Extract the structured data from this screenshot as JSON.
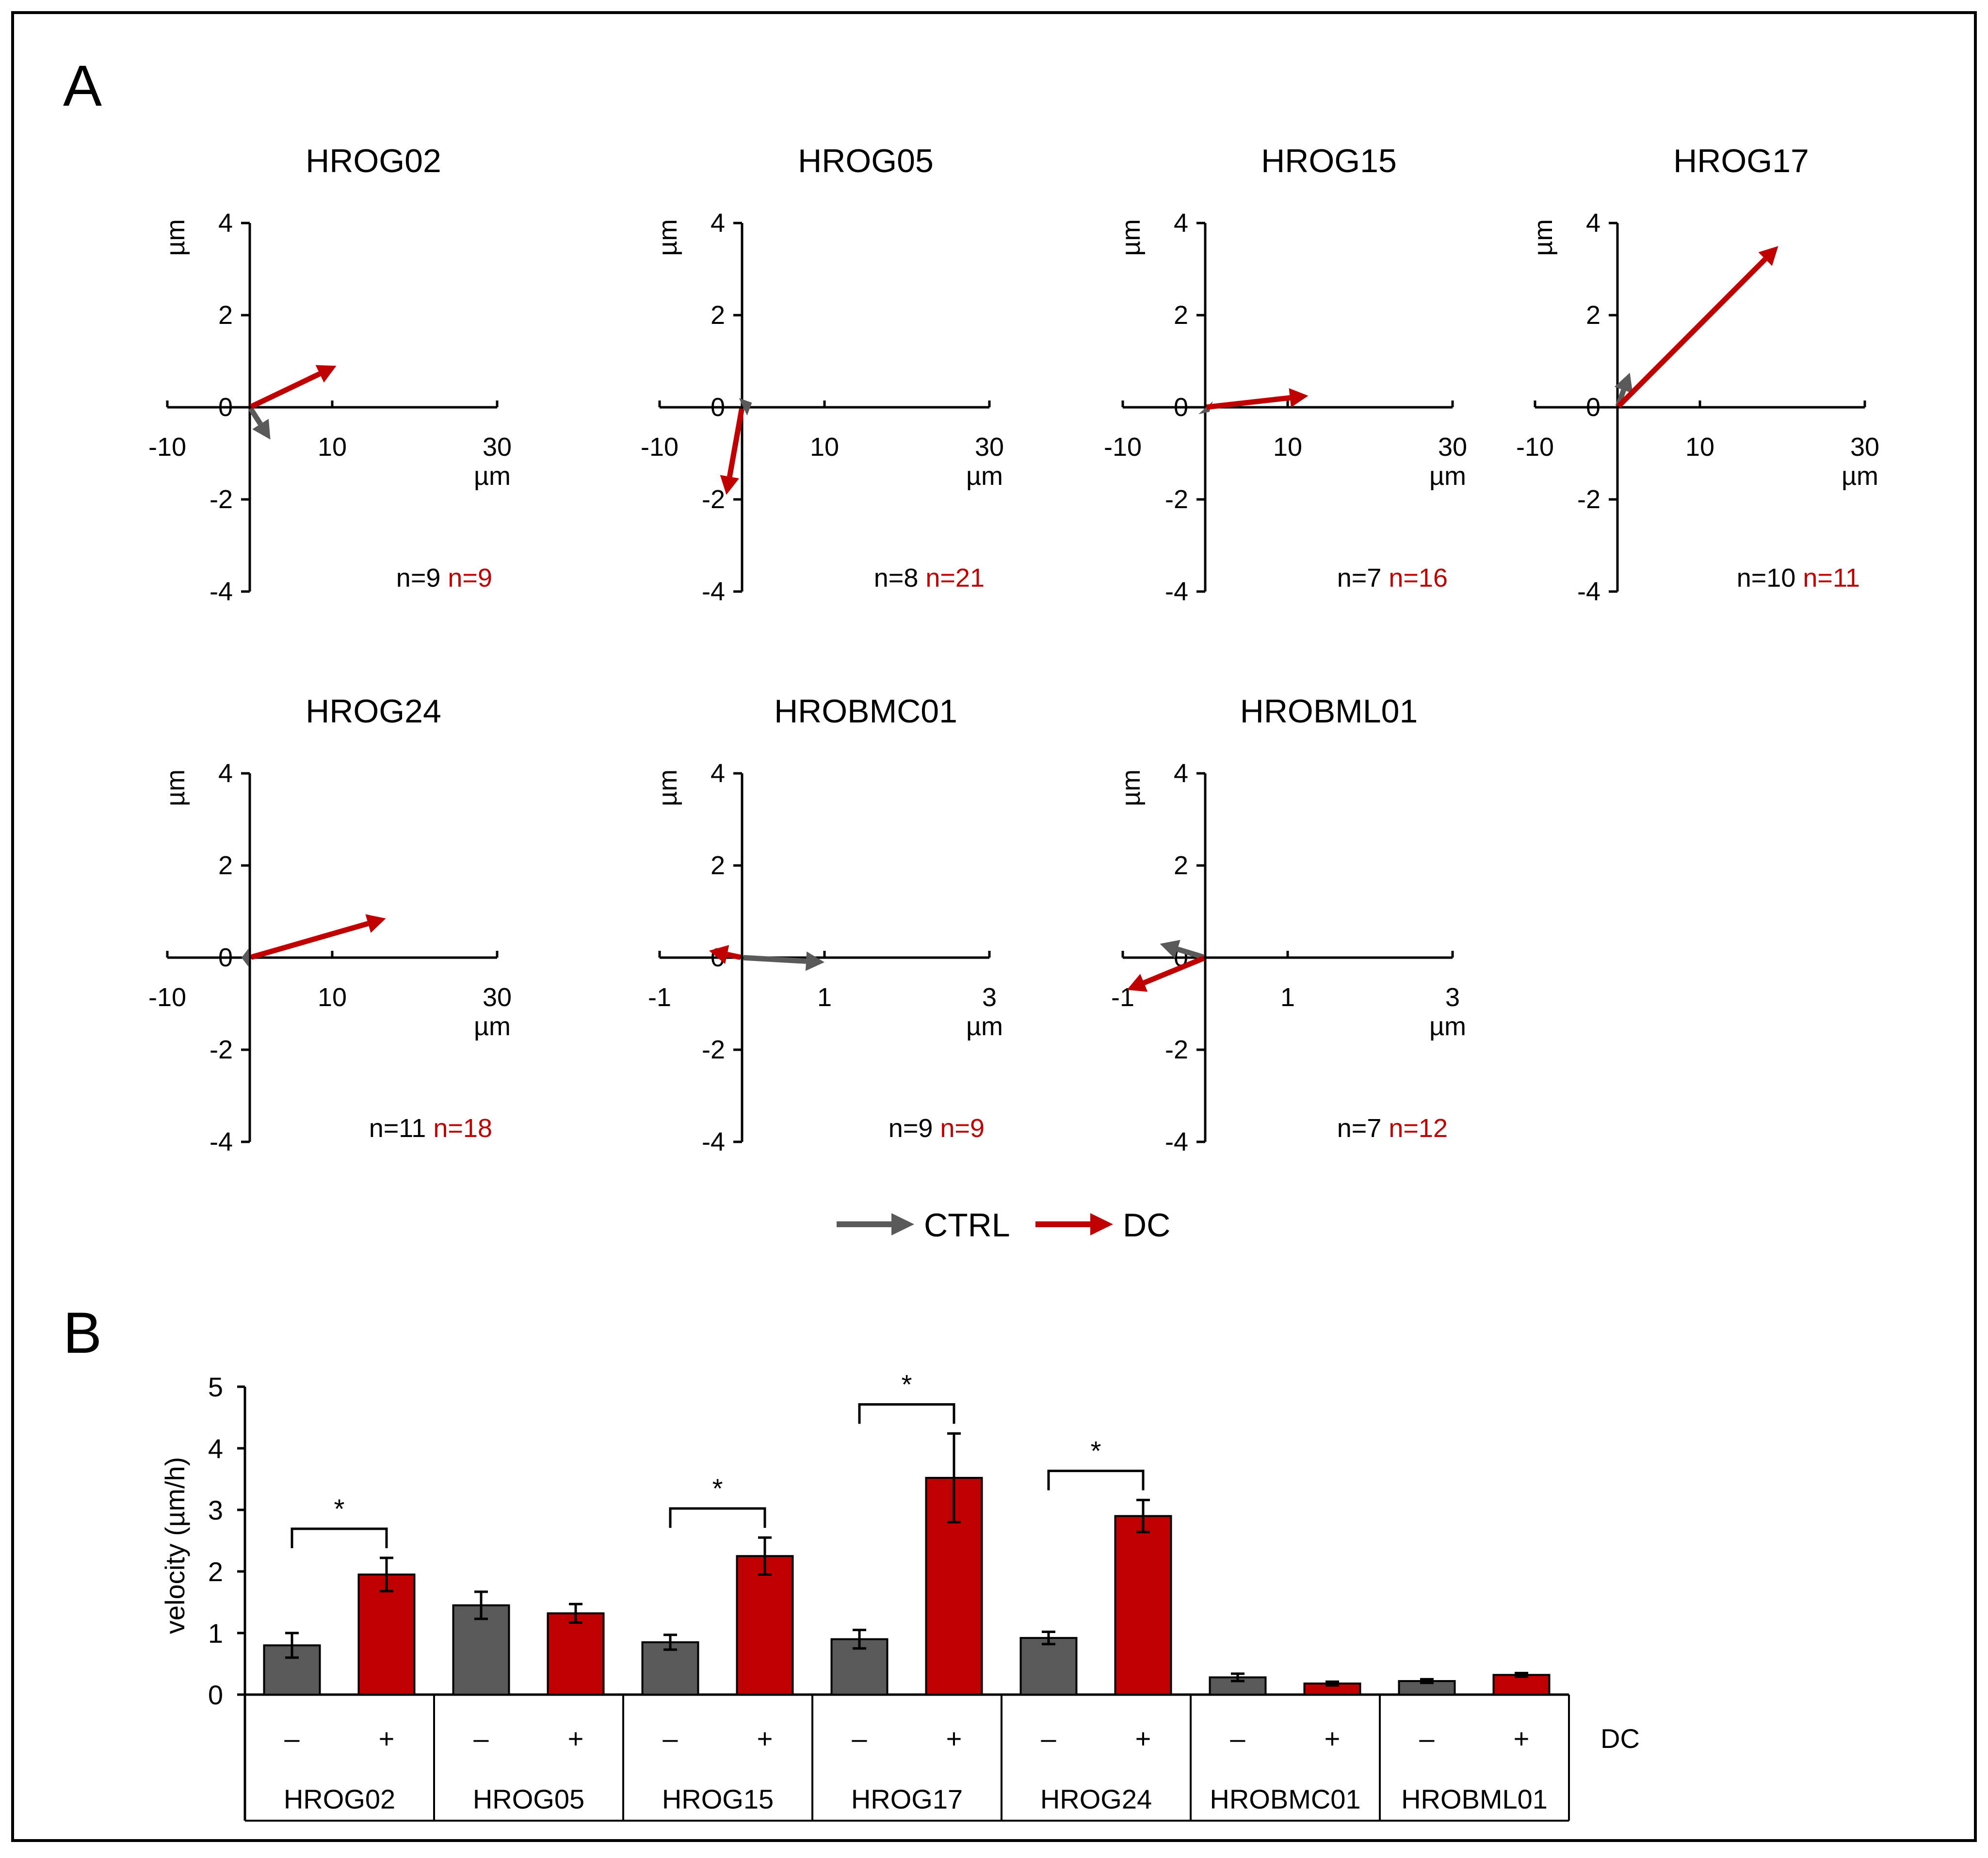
{
  "colors": {
    "ctrl": "#595959",
    "dc": "#C00000",
    "axis": "#000000",
    "text": "#000000",
    "frame": "#000000"
  },
  "panel_a": {
    "label": "A",
    "unit": "µm",
    "legend": [
      {
        "label": "CTRL",
        "color": "#595959"
      },
      {
        "label": "DC",
        "color": "#C00000"
      }
    ]
  },
  "panel_b": {
    "label": "B"
  },
  "chart_data": [
    {
      "type": "vector-plot",
      "title": "HROG02",
      "xlabel": "µm",
      "ylabel": "µm",
      "xlim": [
        -10,
        30
      ],
      "ylim": [
        -4,
        4
      ],
      "xticks": [
        "-10",
        "10",
        "30"
      ],
      "yticks": [
        "4",
        "2",
        "0",
        "-2",
        "-4"
      ],
      "n_ctrl": "n=9",
      "n_dc": "n=9",
      "vectors": [
        {
          "name": "CTRL",
          "dx": 2.5,
          "dy": -0.7
        },
        {
          "name": "DC",
          "dx": 10.5,
          "dy": 0.9
        }
      ]
    },
    {
      "type": "vector-plot",
      "title": "HROG05",
      "xlabel": "µm",
      "ylabel": "µm",
      "xlim": [
        -10,
        30
      ],
      "ylim": [
        -4,
        4
      ],
      "xticks": [
        "-10",
        "10",
        "30"
      ],
      "yticks": [
        "4",
        "2",
        "0",
        "-2",
        "-4"
      ],
      "n_ctrl": "n=8",
      "n_dc": "n=21",
      "vectors": [
        {
          "name": "CTRL",
          "dx": 1.2,
          "dy": 0.1
        },
        {
          "name": "DC",
          "dx": -1.9,
          "dy": -1.9
        }
      ]
    },
    {
      "type": "vector-plot",
      "title": "HROG15",
      "xlabel": "µm",
      "ylabel": "µm",
      "xlim": [
        -10,
        30
      ],
      "ylim": [
        -4,
        4
      ],
      "xticks": [
        "-10",
        "10",
        "30"
      ],
      "yticks": [
        "4",
        "2",
        "0",
        "-2",
        "-4"
      ],
      "n_ctrl": "n=7",
      "n_dc": "n=16",
      "vectors": [
        {
          "name": "CTRL",
          "dx": 0.5,
          "dy": -0.1
        },
        {
          "name": "DC",
          "dx": 12.5,
          "dy": 0.25
        }
      ]
    },
    {
      "type": "vector-plot",
      "title": "HROG17",
      "xlabel": "µm",
      "ylabel": "µm",
      "xlim": [
        -10,
        30
      ],
      "ylim": [
        -4,
        4
      ],
      "xticks": [
        "-10",
        "10",
        "30"
      ],
      "yticks": [
        "4",
        "2",
        "0",
        "-2",
        "-4"
      ],
      "n_ctrl": "n=10",
      "n_dc": "n=11",
      "vectors": [
        {
          "name": "CTRL",
          "dx": 1.5,
          "dy": 0.75
        },
        {
          "name": "DC",
          "dx": 19.5,
          "dy": 3.5
        }
      ]
    },
    {
      "type": "vector-plot",
      "title": "HROG24",
      "xlabel": "µm",
      "ylabel": "µm",
      "xlim": [
        -10,
        30
      ],
      "ylim": [
        -4,
        4
      ],
      "xticks": [
        "-10",
        "10",
        "30"
      ],
      "yticks": [
        "4",
        "2",
        "0",
        "-2",
        "-4"
      ],
      "n_ctrl": "n=11",
      "n_dc": "n=18",
      "vectors": [
        {
          "name": "CTRL",
          "dx": -1.0,
          "dy": 0.0
        },
        {
          "name": "DC",
          "dx": 16.5,
          "dy": 0.85
        }
      ]
    },
    {
      "type": "vector-plot",
      "title": "HROBMC01",
      "xlabel": "µm",
      "ylabel": "µm",
      "xlim": [
        -1,
        3
      ],
      "ylim": [
        -4,
        4
      ],
      "xticks": [
        "-1",
        "1",
        "3"
      ],
      "yticks": [
        "4",
        "2",
        "0",
        "-2",
        "-4"
      ],
      "n_ctrl": "n=9",
      "n_dc": "n=9",
      "vectors": [
        {
          "name": "CTRL",
          "dx": 1.0,
          "dy": -0.1
        },
        {
          "name": "DC",
          "dx": -0.4,
          "dy": 0.15
        }
      ]
    },
    {
      "type": "vector-plot",
      "title": "HROBML01",
      "xlabel": "µm",
      "ylabel": "µm",
      "xlim": [
        -1,
        3
      ],
      "ylim": [
        -4,
        4
      ],
      "xticks": [
        "-1",
        "1",
        "3"
      ],
      "yticks": [
        "4",
        "2",
        "0",
        "-2",
        "-4"
      ],
      "n_ctrl": "n=7",
      "n_dc": "n=12",
      "vectors": [
        {
          "name": "CTRL",
          "dx": -0.55,
          "dy": 0.3
        },
        {
          "name": "DC",
          "dx": -0.95,
          "dy": -0.7
        }
      ]
    },
    {
      "type": "bar",
      "title": "",
      "ylabel": "velocity (µm/h)",
      "ylim": [
        0,
        5
      ],
      "yticks": [
        "0",
        "1",
        "2",
        "3",
        "4",
        "5"
      ],
      "categories": [
        "HROG02",
        "HROG05",
        "HROG15",
        "HROG17",
        "HROG24",
        "HROBMC01",
        "HROBML01"
      ],
      "dc_row_label": "DC",
      "condition_labels": [
        "–",
        "+"
      ],
      "series": [
        {
          "name": "CTRL",
          "values": [
            0.8,
            1.45,
            0.85,
            0.9,
            0.92,
            0.28,
            0.22
          ],
          "errors": [
            0.2,
            0.22,
            0.12,
            0.15,
            0.1,
            0.06,
            0.03
          ]
        },
        {
          "name": "DC",
          "values": [
            1.95,
            1.32,
            2.25,
            3.52,
            2.9,
            0.18,
            0.32
          ],
          "errors": [
            0.27,
            0.15,
            0.3,
            0.72,
            0.26,
            0.03,
            0.03
          ]
        }
      ],
      "significance": [
        {
          "category": "HROG02",
          "label": "*"
        },
        {
          "category": "HROG15",
          "label": "*"
        },
        {
          "category": "HROG17",
          "label": "*"
        },
        {
          "category": "HROG24",
          "label": "*"
        }
      ]
    }
  ]
}
